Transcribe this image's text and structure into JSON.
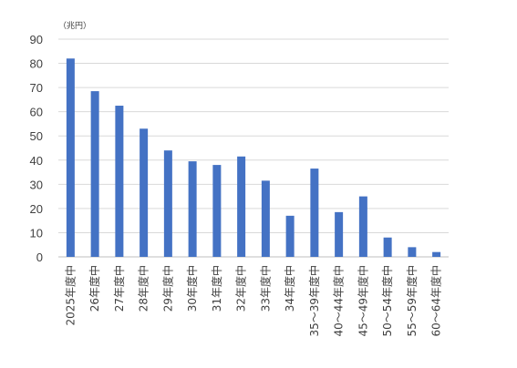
{
  "chart_data": {
    "type": "bar",
    "unit_label": "（兆円）",
    "categories": [
      "2025年度中",
      "26年度中",
      "27年度中",
      "28年度中",
      "29年度中",
      "30年度中",
      "31年度中",
      "32年度中",
      "33年度中",
      "34年度中",
      "35～39年度中",
      "40～44年度中",
      "45～49年度中",
      "50～54年度中",
      "55～59年度中",
      "60～64年度中"
    ],
    "values": [
      82,
      68.5,
      62.5,
      53,
      44,
      39.5,
      38,
      41.5,
      31.5,
      17,
      36.5,
      18.5,
      25,
      8,
      4,
      2
    ],
    "ylim": [
      0,
      90
    ],
    "yticks": [
      0,
      10,
      20,
      30,
      40,
      50,
      60,
      70,
      80,
      90
    ],
    "grid": true,
    "legend": "none",
    "colors": {
      "bar": "#4472C4",
      "grid": "#D9D9D9",
      "axis": "#BFBFBF",
      "text": "#404040"
    }
  }
}
